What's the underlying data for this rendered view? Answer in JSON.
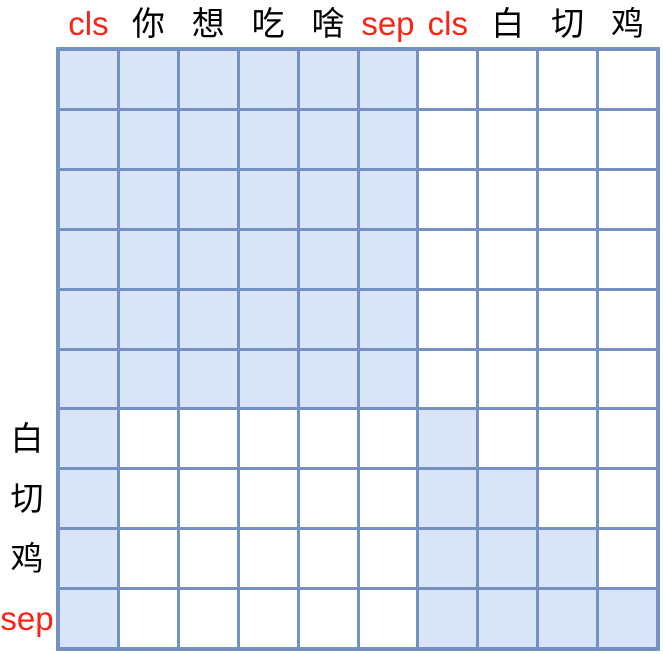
{
  "colors": {
    "cell_on": "#d9e4f6",
    "cell_off": "#ffffff",
    "grid_line": "#7591c1",
    "label_red": "#fb2318",
    "label_black": "#000000"
  },
  "chart_data": {
    "type": "heatmap",
    "title": "",
    "x_labels": [
      "cls",
      "你",
      "想",
      "吃",
      "啥",
      "sep",
      "cls",
      "白",
      "切",
      "鸡"
    ],
    "x_label_colors": [
      "red",
      "black",
      "black",
      "black",
      "black",
      "red",
      "red",
      "black",
      "black",
      "black"
    ],
    "y_labels": [
      "",
      "",
      "",
      "",
      "",
      "",
      "白",
      "切",
      "鸡",
      "sep"
    ],
    "y_label_colors": [
      "black",
      "black",
      "black",
      "black",
      "black",
      "black",
      "black",
      "black",
      "black",
      "red"
    ],
    "matrix": [
      [
        1,
        1,
        1,
        1,
        1,
        1,
        0,
        0,
        0,
        0
      ],
      [
        1,
        1,
        1,
        1,
        1,
        1,
        0,
        0,
        0,
        0
      ],
      [
        1,
        1,
        1,
        1,
        1,
        1,
        0,
        0,
        0,
        0
      ],
      [
        1,
        1,
        1,
        1,
        1,
        1,
        0,
        0,
        0,
        0
      ],
      [
        1,
        1,
        1,
        1,
        1,
        1,
        0,
        0,
        0,
        0
      ],
      [
        1,
        1,
        1,
        1,
        1,
        1,
        0,
        0,
        0,
        0
      ],
      [
        1,
        0,
        0,
        0,
        0,
        0,
        1,
        0,
        0,
        0
      ],
      [
        1,
        0,
        0,
        0,
        0,
        0,
        1,
        1,
        0,
        0
      ],
      [
        1,
        0,
        0,
        0,
        0,
        0,
        1,
        1,
        1,
        0
      ],
      [
        1,
        0,
        0,
        0,
        0,
        0,
        1,
        1,
        1,
        1
      ]
    ],
    "cell_states": {
      "1": "shaded (attend)",
      "0": "white (masked)"
    },
    "grid": "on",
    "legend_position": "none"
  }
}
